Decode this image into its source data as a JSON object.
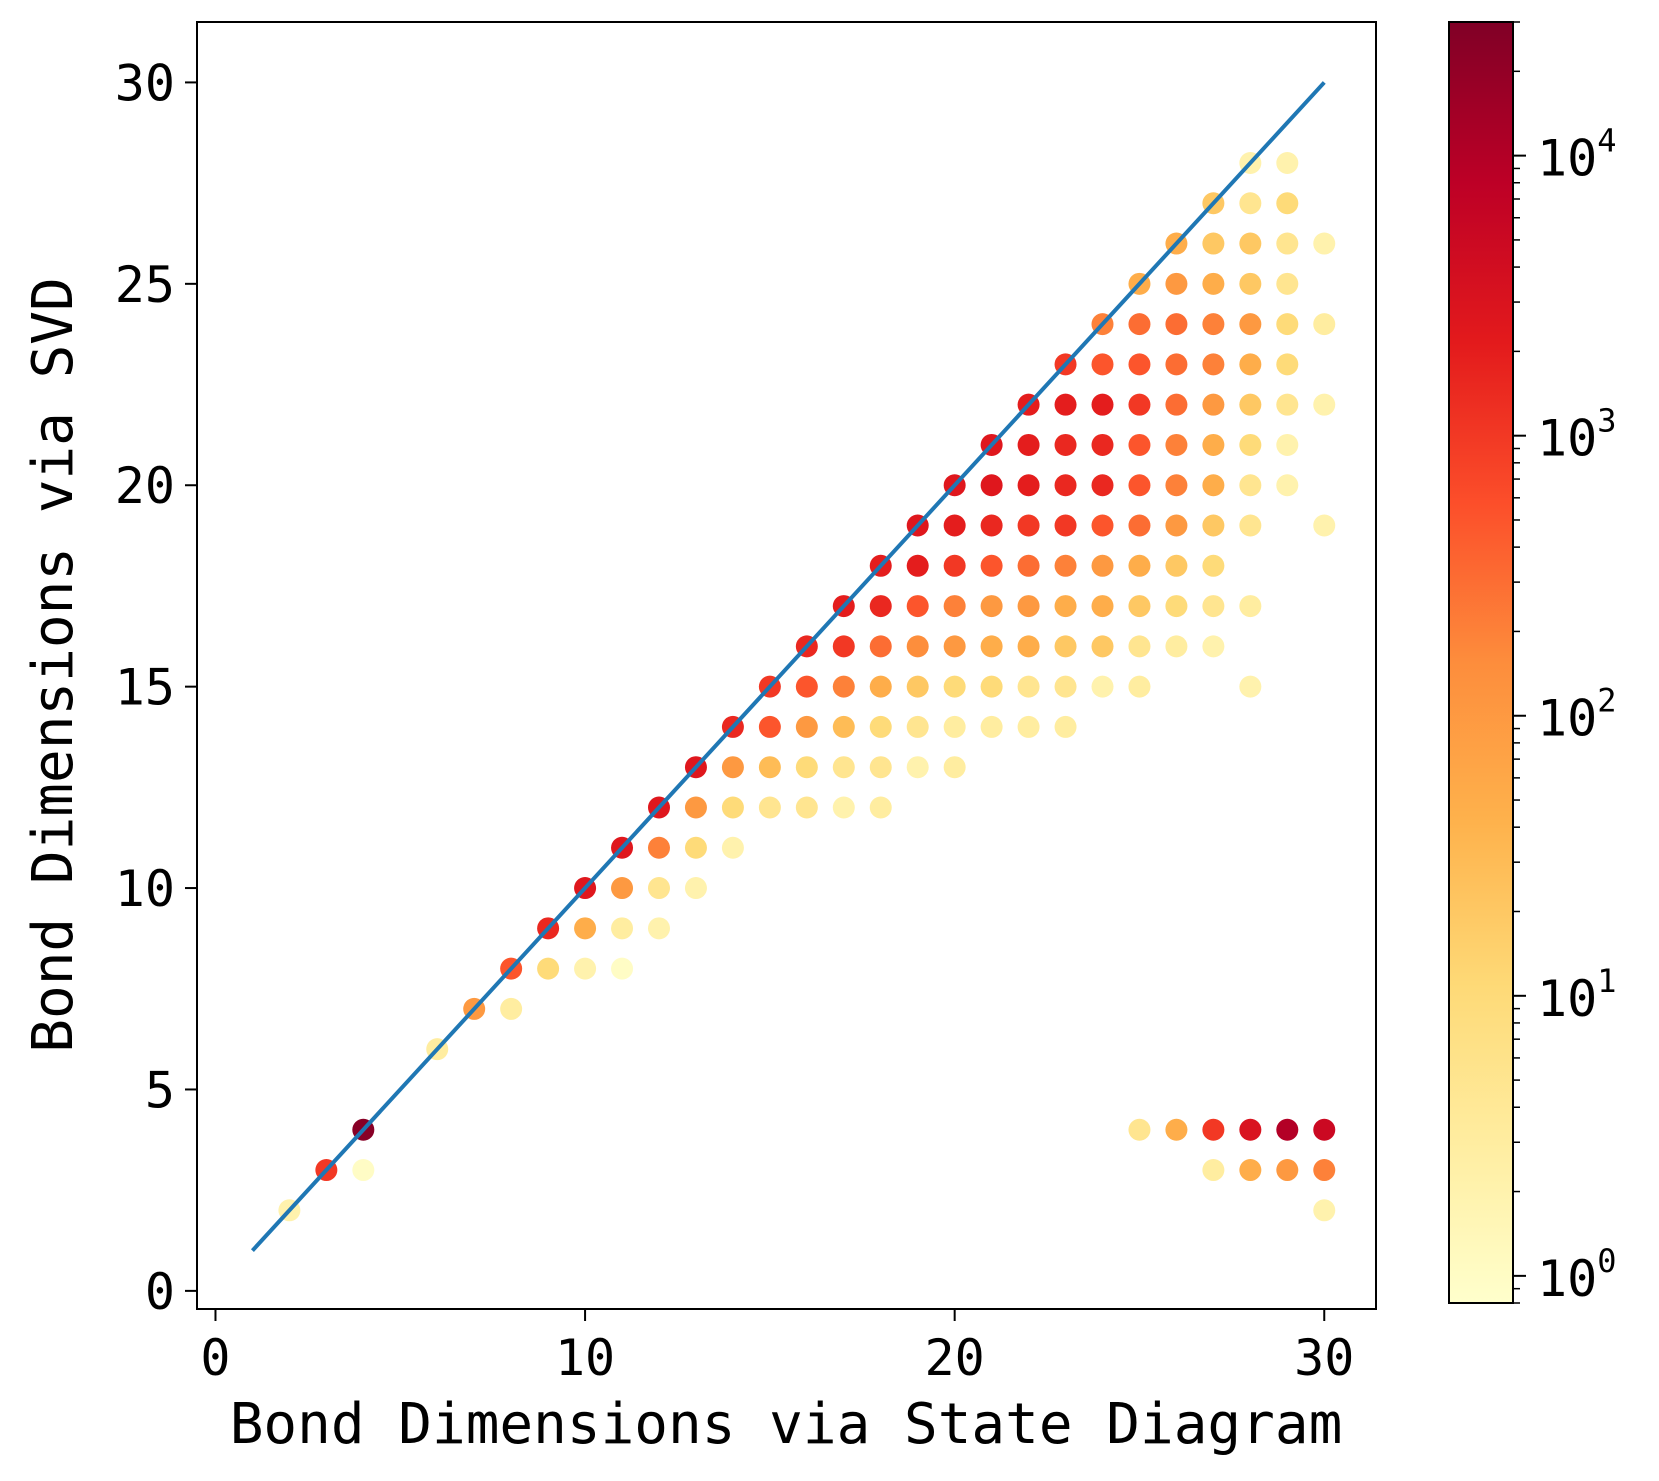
{
  "chart_data": {
    "type": "scatter",
    "title": "",
    "xlabel": "Bond Dimensions via State Diagram",
    "ylabel": "Bond Dimensions via SVD",
    "xlim": [
      -0.5,
      31.4
    ],
    "ylim": [
      -0.45,
      31.5
    ],
    "xticks": [
      "0",
      "10",
      "20",
      "30"
    ],
    "xtick_values": [
      0,
      10,
      20,
      30
    ],
    "yticks": [
      "0",
      "5",
      "10",
      "15",
      "20",
      "25",
      "30"
    ],
    "ytick_values": [
      0,
      5,
      10,
      15,
      20,
      25,
      30
    ],
    "grid": false,
    "reference_line": {
      "x": [
        1,
        30
      ],
      "y": [
        1,
        30
      ],
      "color": "#1f77b4"
    },
    "colorbar": {
      "scale": "log",
      "colormap": "YlOrRd",
      "range": [
        0.8,
        30000
      ],
      "ticks": [
        {
          "value": 1,
          "base": "10",
          "exp": "0"
        },
        {
          "value": 10,
          "base": "10",
          "exp": "1"
        },
        {
          "value": 100,
          "base": "10",
          "exp": "2"
        },
        {
          "value": 1000,
          "base": "10",
          "exp": "3"
        },
        {
          "value": 10000,
          "base": "10",
          "exp": "4"
        }
      ]
    },
    "points": [
      {
        "x": 2,
        "y": 2,
        "c": 2
      },
      {
        "x": 3,
        "y": 3,
        "c": 1000
      },
      {
        "x": 4,
        "y": 3,
        "c": 1
      },
      {
        "x": 4,
        "y": 4,
        "c": 25000
      },
      {
        "x": 6,
        "y": 6,
        "c": 3
      },
      {
        "x": 7,
        "y": 7,
        "c": 100
      },
      {
        "x": 8,
        "y": 7,
        "c": 3
      },
      {
        "x": 8,
        "y": 8,
        "c": 500
      },
      {
        "x": 9,
        "y": 8,
        "c": 10
      },
      {
        "x": 10,
        "y": 8,
        "c": 2
      },
      {
        "x": 11,
        "y": 8,
        "c": 1
      },
      {
        "x": 9,
        "y": 9,
        "c": 1500
      },
      {
        "x": 10,
        "y": 9,
        "c": 50
      },
      {
        "x": 11,
        "y": 9,
        "c": 3
      },
      {
        "x": 12,
        "y": 9,
        "c": 2
      },
      {
        "x": 10,
        "y": 10,
        "c": 2500
      },
      {
        "x": 11,
        "y": 10,
        "c": 100
      },
      {
        "x": 12,
        "y": 10,
        "c": 5
      },
      {
        "x": 13,
        "y": 10,
        "c": 2
      },
      {
        "x": 11,
        "y": 11,
        "c": 2500
      },
      {
        "x": 12,
        "y": 11,
        "c": 200
      },
      {
        "x": 13,
        "y": 11,
        "c": 10
      },
      {
        "x": 14,
        "y": 11,
        "c": 2
      },
      {
        "x": 12,
        "y": 12,
        "c": 2500
      },
      {
        "x": 13,
        "y": 12,
        "c": 100
      },
      {
        "x": 14,
        "y": 12,
        "c": 10
      },
      {
        "x": 15,
        "y": 12,
        "c": 5
      },
      {
        "x": 16,
        "y": 12,
        "c": 5
      },
      {
        "x": 17,
        "y": 12,
        "c": 2
      },
      {
        "x": 18,
        "y": 12,
        "c": 3
      },
      {
        "x": 13,
        "y": 13,
        "c": 2500
      },
      {
        "x": 14,
        "y": 13,
        "c": 100
      },
      {
        "x": 15,
        "y": 13,
        "c": 30
      },
      {
        "x": 16,
        "y": 13,
        "c": 10
      },
      {
        "x": 17,
        "y": 13,
        "c": 5
      },
      {
        "x": 18,
        "y": 13,
        "c": 5
      },
      {
        "x": 19,
        "y": 13,
        "c": 2
      },
      {
        "x": 20,
        "y": 13,
        "c": 3
      },
      {
        "x": 14,
        "y": 14,
        "c": 1500
      },
      {
        "x": 15,
        "y": 14,
        "c": 500
      },
      {
        "x": 16,
        "y": 14,
        "c": 100
      },
      {
        "x": 17,
        "y": 14,
        "c": 30
      },
      {
        "x": 18,
        "y": 14,
        "c": 10
      },
      {
        "x": 19,
        "y": 14,
        "c": 5
      },
      {
        "x": 20,
        "y": 14,
        "c": 3
      },
      {
        "x": 21,
        "y": 14,
        "c": 3
      },
      {
        "x": 22,
        "y": 14,
        "c": 3
      },
      {
        "x": 23,
        "y": 14,
        "c": 3
      },
      {
        "x": 15,
        "y": 15,
        "c": 1000
      },
      {
        "x": 16,
        "y": 15,
        "c": 500
      },
      {
        "x": 17,
        "y": 15,
        "c": 200
      },
      {
        "x": 18,
        "y": 15,
        "c": 50
      },
      {
        "x": 19,
        "y": 15,
        "c": 20
      },
      {
        "x": 20,
        "y": 15,
        "c": 10
      },
      {
        "x": 21,
        "y": 15,
        "c": 10
      },
      {
        "x": 22,
        "y": 15,
        "c": 5
      },
      {
        "x": 23,
        "y": 15,
        "c": 5
      },
      {
        "x": 24,
        "y": 15,
        "c": 2
      },
      {
        "x": 25,
        "y": 15,
        "c": 3
      },
      {
        "x": 28,
        "y": 15,
        "c": 2
      },
      {
        "x": 16,
        "y": 16,
        "c": 1500
      },
      {
        "x": 17,
        "y": 16,
        "c": 1000
      },
      {
        "x": 18,
        "y": 16,
        "c": 300
      },
      {
        "x": 19,
        "y": 16,
        "c": 150
      },
      {
        "x": 20,
        "y": 16,
        "c": 100
      },
      {
        "x": 21,
        "y": 16,
        "c": 50
      },
      {
        "x": 22,
        "y": 16,
        "c": 50
      },
      {
        "x": 23,
        "y": 16,
        "c": 20
      },
      {
        "x": 24,
        "y": 16,
        "c": 20
      },
      {
        "x": 25,
        "y": 16,
        "c": 5
      },
      {
        "x": 26,
        "y": 16,
        "c": 3
      },
      {
        "x": 27,
        "y": 16,
        "c": 2
      },
      {
        "x": 17,
        "y": 17,
        "c": 2000
      },
      {
        "x": 18,
        "y": 17,
        "c": 1500
      },
      {
        "x": 19,
        "y": 17,
        "c": 500
      },
      {
        "x": 20,
        "y": 17,
        "c": 200
      },
      {
        "x": 21,
        "y": 17,
        "c": 100
      },
      {
        "x": 22,
        "y": 17,
        "c": 100
      },
      {
        "x": 23,
        "y": 17,
        "c": 50
      },
      {
        "x": 24,
        "y": 17,
        "c": 50
      },
      {
        "x": 25,
        "y": 17,
        "c": 20
      },
      {
        "x": 26,
        "y": 17,
        "c": 10
      },
      {
        "x": 27,
        "y": 17,
        "c": 5
      },
      {
        "x": 28,
        "y": 17,
        "c": 3
      },
      {
        "x": 18,
        "y": 18,
        "c": 2000
      },
      {
        "x": 19,
        "y": 18,
        "c": 2000
      },
      {
        "x": 20,
        "y": 18,
        "c": 1000
      },
      {
        "x": 21,
        "y": 18,
        "c": 500
      },
      {
        "x": 22,
        "y": 18,
        "c": 300
      },
      {
        "x": 23,
        "y": 18,
        "c": 200
      },
      {
        "x": 24,
        "y": 18,
        "c": 100
      },
      {
        "x": 25,
        "y": 18,
        "c": 50
      },
      {
        "x": 26,
        "y": 18,
        "c": 20
      },
      {
        "x": 27,
        "y": 18,
        "c": 10
      },
      {
        "x": 19,
        "y": 19,
        "c": 2500
      },
      {
        "x": 20,
        "y": 19,
        "c": 2000
      },
      {
        "x": 21,
        "y": 19,
        "c": 1500
      },
      {
        "x": 22,
        "y": 19,
        "c": 1000
      },
      {
        "x": 23,
        "y": 19,
        "c": 1000
      },
      {
        "x": 24,
        "y": 19,
        "c": 500
      },
      {
        "x": 25,
        "y": 19,
        "c": 300
      },
      {
        "x": 26,
        "y": 19,
        "c": 100
      },
      {
        "x": 27,
        "y": 19,
        "c": 20
      },
      {
        "x": 28,
        "y": 19,
        "c": 5
      },
      {
        "x": 30,
        "y": 19,
        "c": 2
      },
      {
        "x": 20,
        "y": 20,
        "c": 2500
      },
      {
        "x": 21,
        "y": 20,
        "c": 2500
      },
      {
        "x": 22,
        "y": 20,
        "c": 2000
      },
      {
        "x": 23,
        "y": 20,
        "c": 1500
      },
      {
        "x": 24,
        "y": 20,
        "c": 1500
      },
      {
        "x": 25,
        "y": 20,
        "c": 500
      },
      {
        "x": 26,
        "y": 20,
        "c": 200
      },
      {
        "x": 27,
        "y": 20,
        "c": 50
      },
      {
        "x": 28,
        "y": 20,
        "c": 5
      },
      {
        "x": 29,
        "y": 20,
        "c": 2
      },
      {
        "x": 21,
        "y": 21,
        "c": 2500
      },
      {
        "x": 22,
        "y": 21,
        "c": 2000
      },
      {
        "x": 23,
        "y": 21,
        "c": 1500
      },
      {
        "x": 24,
        "y": 21,
        "c": 1500
      },
      {
        "x": 25,
        "y": 21,
        "c": 500
      },
      {
        "x": 26,
        "y": 21,
        "c": 200
      },
      {
        "x": 27,
        "y": 21,
        "c": 50
      },
      {
        "x": 28,
        "y": 21,
        "c": 10
      },
      {
        "x": 29,
        "y": 21,
        "c": 2
      },
      {
        "x": 22,
        "y": 22,
        "c": 2000
      },
      {
        "x": 23,
        "y": 22,
        "c": 2000
      },
      {
        "x": 24,
        "y": 22,
        "c": 2000
      },
      {
        "x": 25,
        "y": 22,
        "c": 1000
      },
      {
        "x": 26,
        "y": 22,
        "c": 300
      },
      {
        "x": 27,
        "y": 22,
        "c": 100
      },
      {
        "x": 28,
        "y": 22,
        "c": 20
      },
      {
        "x": 29,
        "y": 22,
        "c": 5
      },
      {
        "x": 30,
        "y": 22,
        "c": 2
      },
      {
        "x": 23,
        "y": 23,
        "c": 1000
      },
      {
        "x": 24,
        "y": 23,
        "c": 500
      },
      {
        "x": 25,
        "y": 23,
        "c": 500
      },
      {
        "x": 26,
        "y": 23,
        "c": 300
      },
      {
        "x": 27,
        "y": 23,
        "c": 200
      },
      {
        "x": 28,
        "y": 23,
        "c": 50
      },
      {
        "x": 29,
        "y": 23,
        "c": 10
      },
      {
        "x": 24,
        "y": 24,
        "c": 200
      },
      {
        "x": 25,
        "y": 24,
        "c": 300
      },
      {
        "x": 26,
        "y": 24,
        "c": 300
      },
      {
        "x": 27,
        "y": 24,
        "c": 200
      },
      {
        "x": 28,
        "y": 24,
        "c": 100
      },
      {
        "x": 29,
        "y": 24,
        "c": 10
      },
      {
        "x": 30,
        "y": 24,
        "c": 3
      },
      {
        "x": 25,
        "y": 25,
        "c": 50
      },
      {
        "x": 26,
        "y": 25,
        "c": 100
      },
      {
        "x": 27,
        "y": 25,
        "c": 50
      },
      {
        "x": 28,
        "y": 25,
        "c": 20
      },
      {
        "x": 29,
        "y": 25,
        "c": 5
      },
      {
        "x": 26,
        "y": 26,
        "c": 50
      },
      {
        "x": 27,
        "y": 26,
        "c": 20
      },
      {
        "x": 28,
        "y": 26,
        "c": 20
      },
      {
        "x": 29,
        "y": 26,
        "c": 5
      },
      {
        "x": 30,
        "y": 26,
        "c": 2
      },
      {
        "x": 27,
        "y": 27,
        "c": 20
      },
      {
        "x": 28,
        "y": 27,
        "c": 5
      },
      {
        "x": 29,
        "y": 27,
        "c": 10
      },
      {
        "x": 28,
        "y": 28,
        "c": 2
      },
      {
        "x": 29,
        "y": 28,
        "c": 2
      },
      {
        "x": 25,
        "y": 4,
        "c": 5
      },
      {
        "x": 26,
        "y": 4,
        "c": 50
      },
      {
        "x": 27,
        "y": 4,
        "c": 1000
      },
      {
        "x": 28,
        "y": 4,
        "c": 3000
      },
      {
        "x": 29,
        "y": 4,
        "c": 10000
      },
      {
        "x": 30,
        "y": 4,
        "c": 5000
      },
      {
        "x": 27,
        "y": 3,
        "c": 3
      },
      {
        "x": 28,
        "y": 3,
        "c": 50
      },
      {
        "x": 29,
        "y": 3,
        "c": 100
      },
      {
        "x": 30,
        "y": 3,
        "c": 200
      },
      {
        "x": 30,
        "y": 2,
        "c": 2
      }
    ]
  }
}
